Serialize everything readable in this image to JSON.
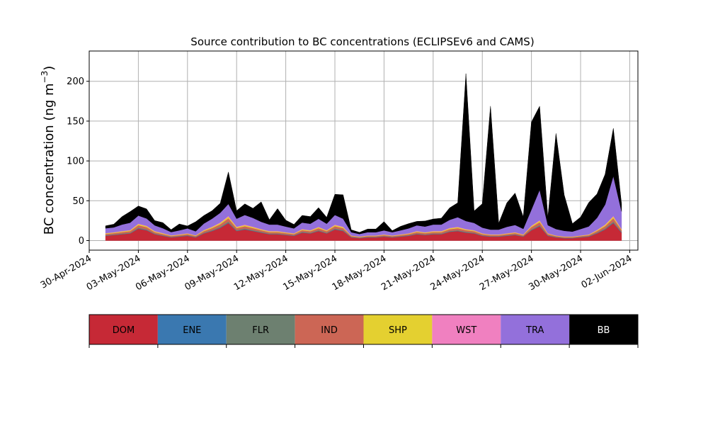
{
  "chart_data": {
    "type": "area",
    "stacked": true,
    "title": "Source contribution to BC concentrations (ECLIPSEv6 and CAMS)",
    "ylabel": "BC concentration (ng m",
    "ylabel_superscript": "−3",
    "ylabel_close": ")",
    "xlim": [
      "2024-04-30T00:00",
      "2024-06-02T12:00"
    ],
    "ylim": [
      -12,
      238
    ],
    "grid": true,
    "y_ticks": [
      0,
      50,
      100,
      150,
      200
    ],
    "x_ticks": [
      {
        "date": "2024-04-30",
        "label": "30-Apr-2024"
      },
      {
        "date": "2024-05-03",
        "label": "03-May-2024"
      },
      {
        "date": "2024-05-06",
        "label": "06-May-2024"
      },
      {
        "date": "2024-05-09",
        "label": "09-May-2024"
      },
      {
        "date": "2024-05-12",
        "label": "12-May-2024"
      },
      {
        "date": "2024-05-15",
        "label": "15-May-2024"
      },
      {
        "date": "2024-05-18",
        "label": "18-May-2024"
      },
      {
        "date": "2024-05-21",
        "label": "21-May-2024"
      },
      {
        "date": "2024-05-24",
        "label": "24-May-2024"
      },
      {
        "date": "2024-05-27",
        "label": "27-May-2024"
      },
      {
        "date": "2024-05-30",
        "label": "30-May-2024"
      },
      {
        "date": "2024-06-02",
        "label": "02-Jun-2024"
      }
    ],
    "x": [
      "2024-05-01T00:00",
      "2024-05-01T12:00",
      "2024-05-02T00:00",
      "2024-05-02T12:00",
      "2024-05-03T00:00",
      "2024-05-03T12:00",
      "2024-05-04T00:00",
      "2024-05-04T12:00",
      "2024-05-05T00:00",
      "2024-05-05T12:00",
      "2024-05-06T00:00",
      "2024-05-06T12:00",
      "2024-05-07T00:00",
      "2024-05-07T12:00",
      "2024-05-08T00:00",
      "2024-05-08T12:00",
      "2024-05-09T00:00",
      "2024-05-09T12:00",
      "2024-05-10T00:00",
      "2024-05-10T12:00",
      "2024-05-11T00:00",
      "2024-05-11T12:00",
      "2024-05-12T00:00",
      "2024-05-12T12:00",
      "2024-05-13T00:00",
      "2024-05-13T12:00",
      "2024-05-14T00:00",
      "2024-05-14T12:00",
      "2024-05-15T00:00",
      "2024-05-15T12:00",
      "2024-05-16T00:00",
      "2024-05-16T12:00",
      "2024-05-17T00:00",
      "2024-05-17T12:00",
      "2024-05-18T00:00",
      "2024-05-18T12:00",
      "2024-05-19T00:00",
      "2024-05-19T12:00",
      "2024-05-20T00:00",
      "2024-05-20T12:00",
      "2024-05-21T00:00",
      "2024-05-21T12:00",
      "2024-05-22T00:00",
      "2024-05-22T12:00",
      "2024-05-23T00:00",
      "2024-05-23T12:00",
      "2024-05-24T00:00",
      "2024-05-24T12:00",
      "2024-05-25T00:00",
      "2024-05-25T12:00",
      "2024-05-26T00:00",
      "2024-05-26T12:00",
      "2024-05-27T00:00",
      "2024-05-27T12:00",
      "2024-05-28T00:00",
      "2024-05-28T12:00",
      "2024-05-29T00:00",
      "2024-05-29T12:00",
      "2024-05-30T00:00",
      "2024-05-30T12:00",
      "2024-05-31T00:00",
      "2024-05-31T12:00",
      "2024-06-01T00:00",
      "2024-06-01T12:00"
    ],
    "series": [
      {
        "name": "DOM",
        "color": "#c62936",
        "values": [
          6,
          7,
          8,
          9,
          15,
          13,
          8,
          6,
          4,
          5,
          6,
          4,
          9,
          12,
          16,
          22,
          12,
          14,
          12,
          10,
          8,
          8,
          7,
          6,
          10,
          9,
          12,
          9,
          14,
          12,
          4,
          3,
          4,
          4,
          5,
          4,
          5,
          6,
          8,
          7,
          8,
          8,
          11,
          12,
          10,
          9,
          6,
          5,
          5,
          6,
          7,
          5,
          13,
          18,
          6,
          4,
          3,
          3,
          4,
          5,
          9,
          14,
          22,
          10
        ]
      },
      {
        "name": "ENE",
        "color": "#3a78b0",
        "values": [
          0.3,
          0.3,
          0.3,
          0.3,
          0.4,
          0.4,
          0.3,
          0.3,
          0.3,
          0.3,
          0.3,
          0.3,
          0.3,
          0.4,
          0.4,
          0.5,
          0.4,
          0.4,
          0.4,
          0.3,
          0.3,
          0.3,
          0.3,
          0.3,
          0.3,
          0.3,
          0.3,
          0.3,
          0.4,
          0.4,
          0.3,
          0.3,
          0.3,
          0.3,
          0.3,
          0.3,
          0.3,
          0.3,
          0.3,
          0.3,
          0.3,
          0.3,
          0.3,
          0.3,
          0.3,
          0.3,
          0.3,
          0.3,
          0.3,
          0.3,
          0.3,
          0.3,
          0.4,
          0.4,
          0.3,
          0.3,
          0.3,
          0.3,
          0.3,
          0.3,
          0.4,
          0.4,
          0.5,
          0.4
        ]
      },
      {
        "name": "FLR",
        "color": "#6d8070",
        "values": [
          0.5,
          0.5,
          0.6,
          0.6,
          0.9,
          0.8,
          0.6,
          0.5,
          0.4,
          0.4,
          0.5,
          0.4,
          0.6,
          0.8,
          1,
          1.3,
          0.8,
          0.9,
          0.8,
          0.7,
          0.6,
          0.6,
          0.5,
          0.5,
          0.7,
          0.6,
          0.8,
          0.6,
          0.9,
          0.8,
          0.4,
          0.3,
          0.4,
          0.4,
          0.4,
          0.4,
          0.4,
          0.5,
          0.6,
          0.5,
          0.6,
          0.6,
          0.7,
          0.8,
          0.7,
          0.6,
          0.5,
          0.4,
          0.4,
          0.5,
          0.5,
          0.4,
          0.8,
          1.1,
          0.5,
          0.4,
          0.3,
          0.3,
          0.4,
          0.4,
          0.6,
          0.9,
          1.3,
          0.7
        ]
      },
      {
        "name": "IND",
        "color": "#cc6655",
        "values": [
          1.5,
          1.6,
          1.8,
          2,
          3,
          2.7,
          1.8,
          1.5,
          1.1,
          1.2,
          1.4,
          1.1,
          2,
          2.5,
          3.2,
          4.2,
          2.5,
          2.8,
          2.5,
          2.1,
          1.8,
          1.8,
          1.6,
          1.4,
          2.1,
          1.9,
          2.5,
          1.9,
          2.8,
          2.5,
          1,
          0.9,
          1,
          1,
          1.2,
          1,
          1.2,
          1.4,
          1.8,
          1.6,
          1.8,
          1.8,
          2.3,
          2.5,
          2.1,
          1.9,
          1.4,
          1.2,
          1.2,
          1.4,
          1.6,
          1.2,
          2.7,
          3.6,
          1.4,
          1,
          0.9,
          0.9,
          1,
          1.2,
          2,
          2.9,
          4.2,
          2.1
        ]
      },
      {
        "name": "SHP",
        "color": "#e4d030",
        "values": [
          0.8,
          0.8,
          0.9,
          1,
          1.4,
          1.3,
          0.9,
          0.8,
          0.6,
          0.6,
          0.7,
          0.6,
          1,
          1.2,
          1.5,
          2,
          1.2,
          1.3,
          1.2,
          1,
          0.9,
          0.9,
          0.8,
          0.7,
          1,
          0.9,
          1.2,
          0.9,
          1.3,
          1.2,
          0.5,
          0.5,
          0.5,
          0.5,
          0.6,
          0.5,
          0.6,
          0.7,
          0.9,
          0.8,
          0.9,
          0.9,
          1.1,
          1.2,
          1,
          0.9,
          0.7,
          0.6,
          0.6,
          0.7,
          0.8,
          0.6,
          1.3,
          1.7,
          0.7,
          0.5,
          0.5,
          0.5,
          0.5,
          0.6,
          1,
          1.4,
          2,
          1
        ]
      },
      {
        "name": "WST",
        "color": "#f080c0",
        "values": [
          0.4,
          0.4,
          0.5,
          0.5,
          0.7,
          0.6,
          0.5,
          0.4,
          0.3,
          0.3,
          0.4,
          0.3,
          0.5,
          0.6,
          0.8,
          1,
          0.6,
          0.7,
          0.6,
          0.5,
          0.5,
          0.5,
          0.4,
          0.4,
          0.5,
          0.5,
          0.6,
          0.5,
          0.7,
          0.6,
          0.3,
          0.3,
          0.3,
          0.3,
          0.3,
          0.3,
          0.3,
          0.4,
          0.5,
          0.4,
          0.5,
          0.5,
          0.6,
          0.6,
          0.5,
          0.5,
          0.4,
          0.3,
          0.3,
          0.4,
          0.4,
          0.3,
          0.7,
          0.9,
          0.4,
          0.3,
          0.3,
          0.3,
          0.3,
          0.3,
          0.5,
          0.7,
          1,
          0.5
        ]
      },
      {
        "name": "TRA",
        "color": "#9370db",
        "values": [
          6,
          6,
          8,
          9,
          10,
          9,
          7,
          6,
          4,
          5,
          6,
          5,
          8,
          10,
          12,
          15,
          10,
          12,
          11,
          9,
          8,
          8,
          7,
          6,
          8,
          8,
          10,
          8,
          12,
          10,
          4,
          3,
          4,
          4,
          5,
          4,
          5,
          6,
          7,
          7,
          8,
          8,
          10,
          12,
          10,
          9,
          7,
          6,
          6,
          8,
          9,
          7,
          20,
          38,
          10,
          8,
          7,
          6,
          8,
          10,
          15,
          25,
          50,
          22
        ]
      },
      {
        "name": "BB",
        "color": "#000000",
        "values": [
          3,
          4,
          10,
          14,
          12,
          12,
          6,
          7,
          3,
          8,
          3,
          12,
          10,
          10,
          12,
          40,
          10,
          14,
          12,
          25,
          6,
          20,
          8,
          5,
          9,
          9,
          14,
          8,
          26,
          30,
          3,
          2,
          4,
          4,
          11,
          2,
          5,
          6,
          5,
          7,
          7,
          8,
          15,
          18,
          185,
          15,
          30,
          155,
          8,
          30,
          40,
          15,
          110,
          105,
          10,
          120,
          45,
          10,
          15,
          30,
          30,
          38,
          60,
          9
        ]
      }
    ]
  },
  "legend": {
    "entries": [
      {
        "label": "DOM",
        "color": "#c62936",
        "text_color": "#000000"
      },
      {
        "label": "ENE",
        "color": "#3a78b0",
        "text_color": "#000000"
      },
      {
        "label": "FLR",
        "color": "#6d8070",
        "text_color": "#000000"
      },
      {
        "label": "IND",
        "color": "#cc6655",
        "text_color": "#000000"
      },
      {
        "label": "SHP",
        "color": "#e4d030",
        "text_color": "#000000"
      },
      {
        "label": "WST",
        "color": "#f080c0",
        "text_color": "#000000"
      },
      {
        "label": "TRA",
        "color": "#9370db",
        "text_color": "#000000"
      },
      {
        "label": "BB",
        "color": "#000000",
        "text_color": "#ffffff"
      }
    ]
  }
}
